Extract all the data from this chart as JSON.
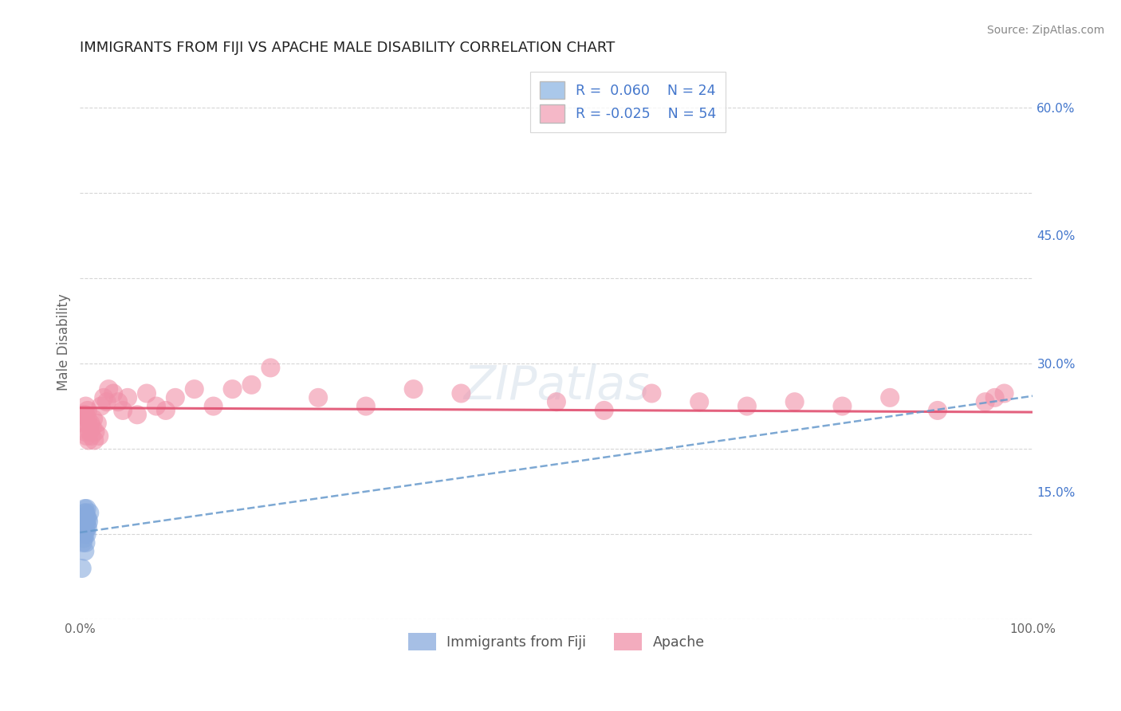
{
  "title": "IMMIGRANTS FROM FIJI VS APACHE MALE DISABILITY CORRELATION CHART",
  "source": "Source: ZipAtlas.com",
  "xlabel": "",
  "ylabel": "Male Disability",
  "xlim": [
    0.0,
    1.0
  ],
  "ylim": [
    0.0,
    0.65
  ],
  "xticks": [
    0.0,
    0.25,
    0.5,
    0.75,
    1.0
  ],
  "xticklabels": [
    "0.0%",
    "",
    "",
    "",
    "100.0%"
  ],
  "yticks": [
    0.0,
    0.15,
    0.3,
    0.45,
    0.6
  ],
  "yticklabels_right": [
    "",
    "15.0%",
    "30.0%",
    "45.0%",
    "60.0%"
  ],
  "series1_label": "Immigrants from Fiji",
  "series1_R": "0.060",
  "series1_N": "24",
  "series1_color": "#aac8ea",
  "series1_scatter_color": "#88aadd",
  "series2_label": "Apache",
  "series2_R": "-0.025",
  "series2_N": "54",
  "series2_color": "#f5b8c8",
  "series2_scatter_color": "#f090a8",
  "background_color": "#ffffff",
  "grid_color": "#cccccc",
  "title_color": "#222222",
  "fiji_x": [
    0.002,
    0.003,
    0.003,
    0.004,
    0.004,
    0.004,
    0.005,
    0.005,
    0.005,
    0.005,
    0.005,
    0.005,
    0.006,
    0.006,
    0.006,
    0.006,
    0.007,
    0.007,
    0.007,
    0.007,
    0.008,
    0.008,
    0.009,
    0.01
  ],
  "fiji_y": [
    0.06,
    0.09,
    0.11,
    0.095,
    0.105,
    0.12,
    0.08,
    0.1,
    0.11,
    0.115,
    0.125,
    0.13,
    0.09,
    0.105,
    0.115,
    0.125,
    0.1,
    0.11,
    0.12,
    0.13,
    0.108,
    0.118,
    0.115,
    0.125
  ],
  "apache_x": [
    0.003,
    0.004,
    0.005,
    0.005,
    0.006,
    0.006,
    0.007,
    0.007,
    0.008,
    0.008,
    0.009,
    0.01,
    0.011,
    0.012,
    0.013,
    0.014,
    0.015,
    0.016,
    0.018,
    0.02,
    0.022,
    0.025,
    0.028,
    0.03,
    0.035,
    0.04,
    0.045,
    0.05,
    0.06,
    0.07,
    0.08,
    0.09,
    0.1,
    0.12,
    0.14,
    0.16,
    0.18,
    0.2,
    0.25,
    0.3,
    0.35,
    0.4,
    0.5,
    0.55,
    0.6,
    0.65,
    0.7,
    0.75,
    0.8,
    0.85,
    0.9,
    0.95,
    0.96,
    0.97
  ],
  "apache_y": [
    0.24,
    0.23,
    0.24,
    0.22,
    0.24,
    0.25,
    0.23,
    0.215,
    0.235,
    0.245,
    0.21,
    0.22,
    0.23,
    0.215,
    0.225,
    0.235,
    0.21,
    0.22,
    0.23,
    0.215,
    0.25,
    0.26,
    0.255,
    0.27,
    0.265,
    0.255,
    0.245,
    0.26,
    0.24,
    0.265,
    0.25,
    0.245,
    0.26,
    0.27,
    0.25,
    0.27,
    0.275,
    0.295,
    0.26,
    0.25,
    0.27,
    0.265,
    0.255,
    0.245,
    0.265,
    0.255,
    0.25,
    0.255,
    0.25,
    0.26,
    0.245,
    0.255,
    0.26,
    0.265
  ],
  "legend_box_color": "#ffffff",
  "legend_text_color": "#4477cc",
  "apache_line_color": "#e05070",
  "fiji_line_color": "#6699cc",
  "apache_line_intercept": 0.248,
  "apache_line_slope": -0.005,
  "fiji_line_start_y": 0.102,
  "fiji_line_end_y": 0.262
}
